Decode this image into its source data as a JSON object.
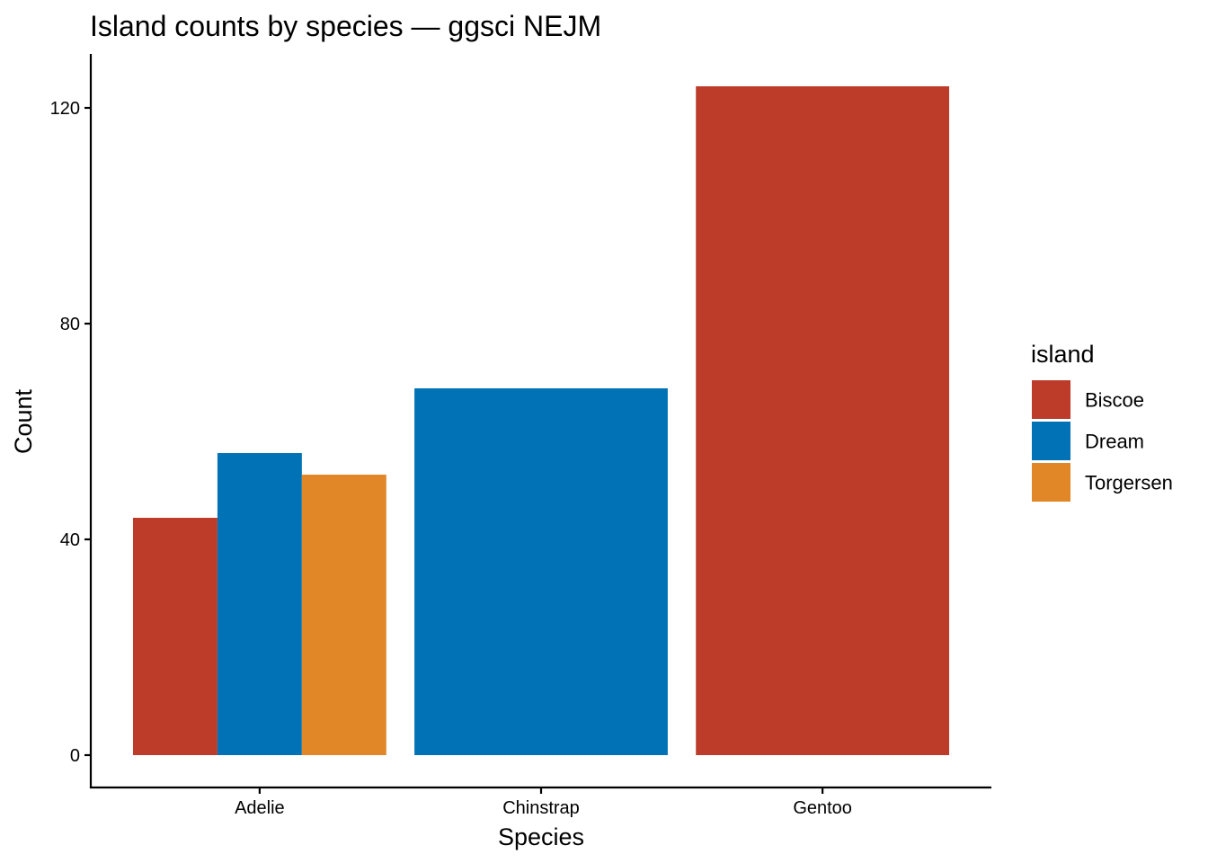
{
  "chart_data": {
    "type": "bar",
    "title": "Island counts by species — ggsci NEJM",
    "xlabel": "Species",
    "ylabel": "Count",
    "ylim": [
      -6,
      130
    ],
    "y_ticks": [
      0,
      40,
      80,
      120
    ],
    "y_tick_labels": [
      "0",
      "40",
      "80",
      "120"
    ],
    "grid": false,
    "categories": [
      "Adelie",
      "Chinstrap",
      "Gentoo"
    ],
    "series": [
      {
        "name": "Biscoe",
        "color": "#BC3C29",
        "values": [
          44,
          null,
          124
        ]
      },
      {
        "name": "Dream",
        "color": "#0072B5",
        "values": [
          56,
          68,
          null
        ]
      },
      {
        "name": "Torgersen",
        "color": "#E18727",
        "values": [
          52,
          null,
          null
        ]
      }
    ],
    "bar_position": "dodge",
    "legend": {
      "title": "island",
      "position": "right",
      "items": [
        "Biscoe",
        "Dream",
        "Torgersen"
      ]
    }
  }
}
